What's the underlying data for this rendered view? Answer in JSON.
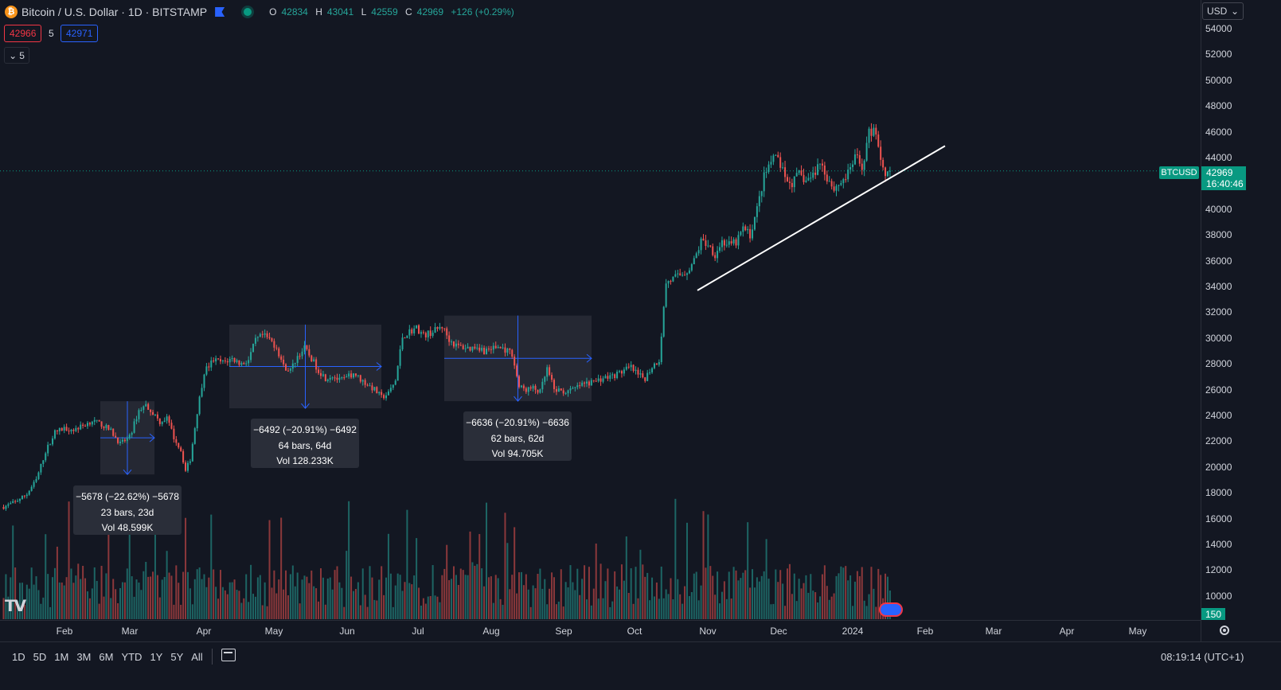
{
  "header": {
    "coin_icon": "₿",
    "symbol_title": "Bitcoin / U.S. Dollar · 1D · BITSTAMP",
    "ohlc": {
      "o_label": "O",
      "o": "42834",
      "h_label": "H",
      "h": "43041",
      "l_label": "L",
      "l": "42559",
      "c_label": "C",
      "c": "42969",
      "change": "+126 (+0.29%)"
    },
    "sell_price": "42966",
    "spread": "5",
    "buy_price": "42971",
    "indicator_count": "5",
    "collapse_icon": "chevron-down-icon"
  },
  "currency": "USD",
  "price_tag": {
    "symbol": "BTCUSD",
    "price": "42969",
    "countdown": "16:40:46"
  },
  "volume_tag": "150",
  "time_display": "08:19:14 (UTC+1)",
  "ranges": [
    "1D",
    "5D",
    "1M",
    "3M",
    "6M",
    "YTD",
    "1Y",
    "5Y",
    "All"
  ],
  "measurements": [
    {
      "line1": "−5678 (−22.62%) −5678",
      "line2": "23 bars, 23d",
      "line3": "Vol 48.599K"
    },
    {
      "line1": "−6492 (−20.91%) −6492",
      "line2": "64 bars, 64d",
      "line3": "Vol 128.233K"
    },
    {
      "line1": "−6636 (−20.91%) −6636",
      "line2": "62 bars, 62d",
      "line3": "Vol 94.705K"
    }
  ],
  "colors": {
    "up": "#26a69a",
    "down": "#ef5350",
    "bg": "#131722",
    "accent": "#2962ff"
  },
  "chart_data": {
    "type": "candlestick",
    "y_ticks": [
      "54000",
      "52000",
      "50000",
      "48000",
      "46000",
      "44000",
      "42000",
      "40000",
      "38000",
      "36000",
      "34000",
      "32000",
      "30000",
      "28000",
      "26000",
      "24000",
      "22000",
      "20000",
      "18000",
      "16000",
      "14000",
      "12000",
      "10000"
    ],
    "x_ticks": [
      "Feb",
      "Mar",
      "Apr",
      "May",
      "Jun",
      "Jul",
      "Aug",
      "Sep",
      "Oct",
      "Nov",
      "Dec",
      "2024",
      "Feb",
      "Mar",
      "Apr",
      "May"
    ],
    "ylim": [
      9000,
      55500
    ],
    "price_path": [
      [
        0,
        16900
      ],
      [
        5,
        17300
      ],
      [
        10,
        17900
      ],
      [
        14,
        19000
      ],
      [
        18,
        21200
      ],
      [
        22,
        22700
      ],
      [
        26,
        23000
      ],
      [
        30,
        22900
      ],
      [
        34,
        23200
      ],
      [
        38,
        23600
      ],
      [
        42,
        23300
      ],
      [
        46,
        22800
      ],
      [
        50,
        21800
      ],
      [
        54,
        22300
      ],
      [
        58,
        24400
      ],
      [
        61,
        24800
      ],
      [
        64,
        24200
      ],
      [
        67,
        23500
      ],
      [
        70,
        23800
      ],
      [
        73,
        22300
      ],
      [
        76,
        21300
      ],
      [
        78,
        19700
      ],
      [
        80,
        20600
      ],
      [
        83,
        24300
      ],
      [
        86,
        27400
      ],
      [
        90,
        28300
      ],
      [
        94,
        28100
      ],
      [
        98,
        28400
      ],
      [
        102,
        28000
      ],
      [
        105,
        28300
      ],
      [
        108,
        29800
      ],
      [
        111,
        30200
      ],
      [
        114,
        29900
      ],
      [
        117,
        29300
      ],
      [
        120,
        27800
      ],
      [
        123,
        27500
      ],
      [
        126,
        28600
      ],
      [
        129,
        29200
      ],
      [
        132,
        28400
      ],
      [
        135,
        27500
      ],
      [
        138,
        26900
      ],
      [
        141,
        27100
      ],
      [
        144,
        26700
      ],
      [
        147,
        26900
      ],
      [
        150,
        27300
      ],
      [
        153,
        26800
      ],
      [
        156,
        26400
      ],
      [
        159,
        26000
      ],
      [
        162,
        25400
      ],
      [
        165,
        25700
      ],
      [
        168,
        26700
      ],
      [
        171,
        30100
      ],
      [
        174,
        30500
      ],
      [
        177,
        30800
      ],
      [
        180,
        30200
      ],
      [
        184,
        30500
      ],
      [
        188,
        30900
      ],
      [
        191,
        29900
      ],
      [
        194,
        29400
      ],
      [
        197,
        29300
      ],
      [
        200,
        29200
      ],
      [
        203,
        29400
      ],
      [
        206,
        29000
      ],
      [
        209,
        29200
      ],
      [
        212,
        29300
      ],
      [
        215,
        29100
      ],
      [
        218,
        28800
      ],
      [
        221,
        26200
      ],
      [
        224,
        26000
      ],
      [
        227,
        26100
      ],
      [
        230,
        25800
      ],
      [
        233,
        27600
      ],
      [
        236,
        26000
      ],
      [
        239,
        25900
      ],
      [
        242,
        25800
      ],
      [
        245,
        26100
      ],
      [
        248,
        26400
      ],
      [
        251,
        26500
      ],
      [
        254,
        26700
      ],
      [
        257,
        26900
      ],
      [
        260,
        27000
      ],
      [
        263,
        27200
      ],
      [
        266,
        27500
      ],
      [
        269,
        27700
      ],
      [
        272,
        27100
      ],
      [
        275,
        26900
      ],
      [
        278,
        27800
      ],
      [
        281,
        28300
      ],
      [
        284,
        34300
      ],
      [
        287,
        34600
      ],
      [
        290,
        34900
      ],
      [
        293,
        35200
      ],
      [
        296,
        36000
      ],
      [
        299,
        37500
      ],
      [
        302,
        37300
      ],
      [
        305,
        36500
      ],
      [
        308,
        37500
      ],
      [
        311,
        37200
      ],
      [
        314,
        37400
      ],
      [
        317,
        38500
      ],
      [
        320,
        38000
      ],
      [
        323,
        40000
      ],
      [
        326,
        42500
      ],
      [
        329,
        43700
      ],
      [
        332,
        44000
      ],
      [
        335,
        42300
      ],
      [
        338,
        42000
      ],
      [
        341,
        42700
      ],
      [
        344,
        42200
      ],
      [
        347,
        42600
      ],
      [
        350,
        43700
      ],
      [
        353,
        42500
      ],
      [
        356,
        41600
      ],
      [
        359,
        42100
      ],
      [
        362,
        42700
      ],
      [
        365,
        44100
      ],
      [
        368,
        43200
      ],
      [
        371,
        45900
      ],
      [
        374,
        46100
      ],
      [
        376,
        43800
      ],
      [
        378,
        42900
      ],
      [
        380,
        42969
      ]
    ],
    "trendline": {
      "from_price": 33700,
      "to_price": 44900
    },
    "measures": [
      {
        "from_price": 25100,
        "to_price": 19422,
        "bars": 23
      },
      {
        "from_price": 31044,
        "to_price": 24552,
        "bars": 64
      },
      {
        "from_price": 31744,
        "to_price": 25108,
        "bars": 62
      }
    ]
  }
}
